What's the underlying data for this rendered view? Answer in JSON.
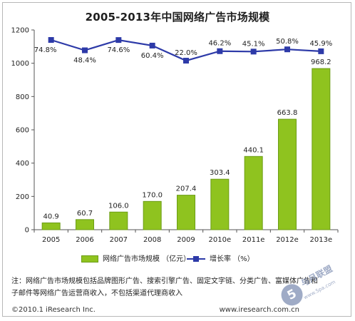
{
  "title": "2005-2013年中国网络广告市场规模",
  "chart_data": {
    "type": "bar",
    "categories": [
      "2005",
      "2006",
      "2007",
      "2008",
      "2009",
      "2010e",
      "2011e",
      "2012e",
      "2013e"
    ],
    "y_ticks": [
      "0",
      "200",
      "400",
      "600",
      "800",
      "1000",
      "1200"
    ],
    "ylim": [
      0,
      1200
    ],
    "series": [
      {
        "name": "网络广告市场规模 （亿元）",
        "type": "bar",
        "values": [
          40.9,
          60.7,
          106.0,
          170.0,
          207.4,
          303.4,
          440.1,
          663.8,
          968.2
        ],
        "labels": [
          "40.9",
          "60.7",
          "106.0",
          "170.0",
          "207.4",
          "303.4",
          "440.1",
          "663.8",
          "968.2"
        ],
        "color": "#8fc31f"
      },
      {
        "name": "增长率 （%）",
        "type": "line",
        "values": [
          74.8,
          48.4,
          74.6,
          60.4,
          22.0,
          46.2,
          45.1,
          50.8,
          45.9
        ],
        "labels": [
          "74.8%",
          "48.4%",
          "74.6%",
          "60.4%",
          "22.0%",
          "46.2%",
          "45.1%",
          "50.8%",
          "45.9%"
        ],
        "color": "#2d3aa8"
      }
    ],
    "grid": false,
    "legend_position": "bottom"
  },
  "note": {
    "line1": "注：网络广告市场规模包括品牌图形广告、搜索引擎广告、固定文字链、分类广告、富媒体广告和",
    "line2": "子邮件等网络广告运营商收入，不包括渠道代理商收入"
  },
  "footer": {
    "copyright": "©2010.1 iResearch Inc.",
    "site": "www.iresearch.com.cn"
  },
  "watermark": {
    "mark": "5",
    "text": "与月联盟",
    "subtext": "www.5pa.com"
  },
  "colors": {
    "bar": "#8fc31f",
    "bar_border": "#6c9d16",
    "line": "#2d3aa8",
    "axis": "#555555"
  }
}
